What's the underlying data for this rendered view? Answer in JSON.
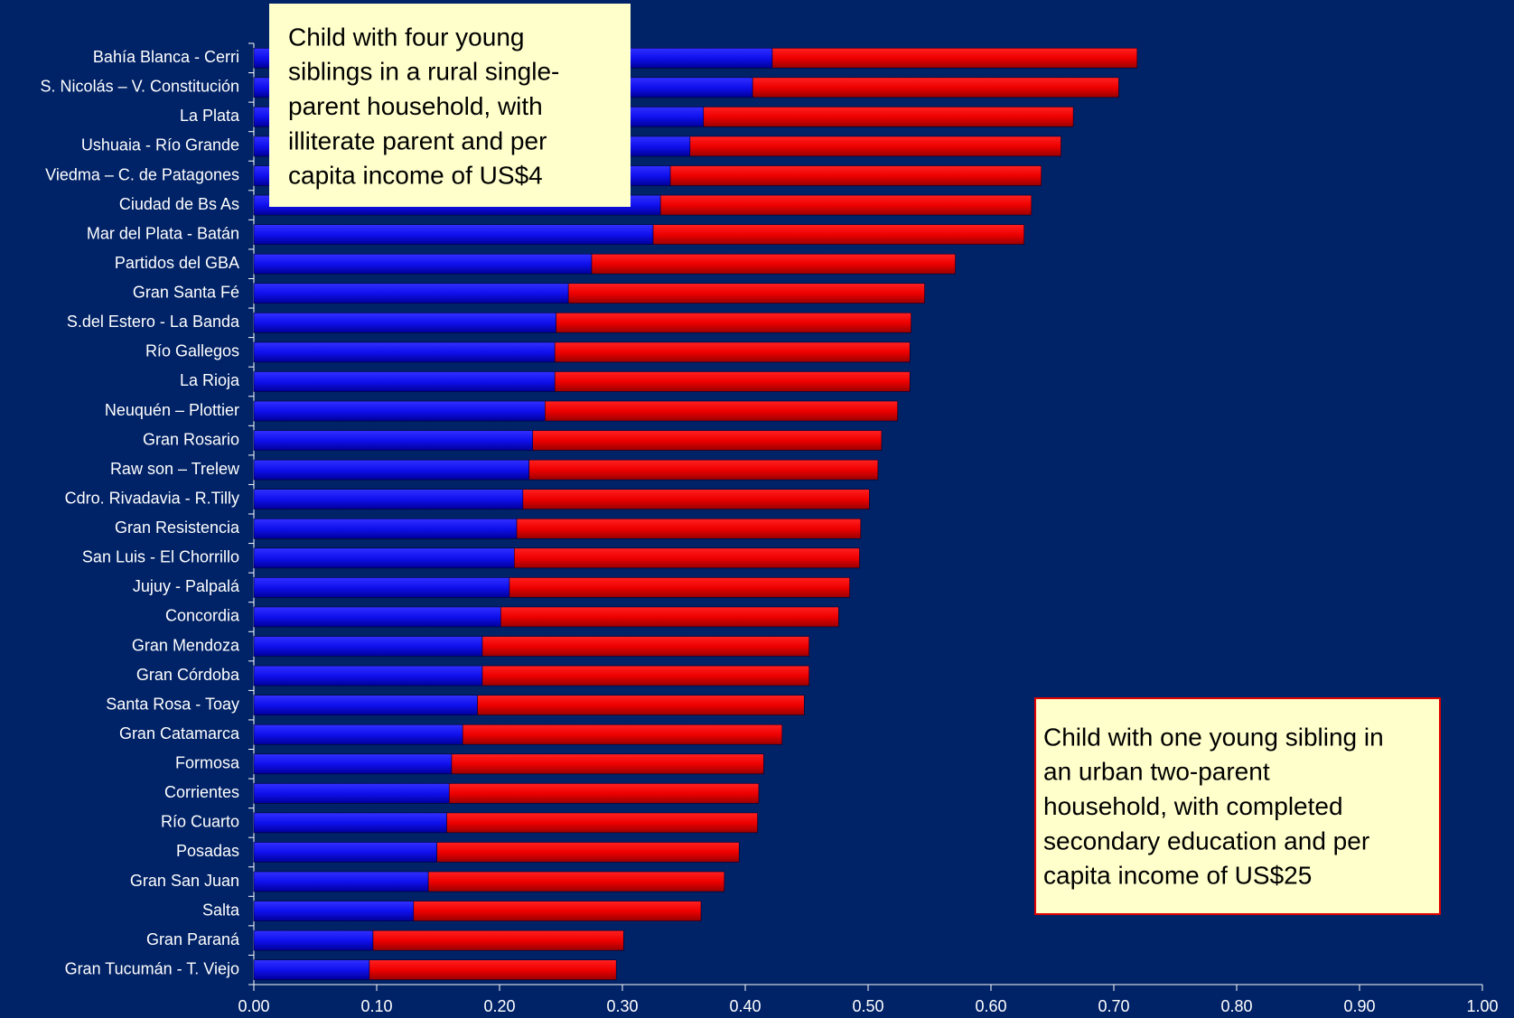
{
  "chart_data": {
    "type": "stacked_barh",
    "categories": [
      "Bahía Blanca - Cerri",
      "S. Nicolás – V. Constitución",
      "La Plata",
      "Ushuaia - Río Grande",
      "Viedma – C. de Patagones",
      "Ciudad de Bs As",
      "Mar del Plata - Batán",
      "Partidos del GBA",
      "Gran Santa Fé",
      "S.del Estero - La Banda",
      "Río Gallegos",
      "La Rioja",
      "Neuquén – Plottier",
      "Gran Rosario",
      "Raw son – Trelew",
      "Cdro. Rivadavia - R.Tilly",
      "Gran Resistencia",
      "San Luis - El Chorrillo",
      "Jujuy - Palpalá",
      "Concordia",
      "Gran Mendoza",
      "Gran Córdoba",
      "Santa Rosa - Toay",
      "Gran Catamarca",
      "Formosa",
      "Corrientes",
      "Río Cuarto",
      "Posadas",
      "Gran San Juan",
      "Salta",
      "Gran Paraná",
      "Gran Tucumán - T. Viejo"
    ],
    "series": [
      {
        "color": "#1a1aff",
        "values": [
          0.422,
          0.406,
          0.366,
          0.355,
          0.339,
          0.331,
          0.325,
          0.275,
          0.256,
          0.246,
          0.245,
          0.245,
          0.237,
          0.227,
          0.224,
          0.219,
          0.214,
          0.212,
          0.208,
          0.201,
          0.186,
          0.186,
          0.182,
          0.17,
          0.161,
          0.159,
          0.157,
          0.149,
          0.142,
          0.13,
          0.097,
          0.094
        ]
      },
      {
        "color": "#ee0000",
        "values": [
          0.297,
          0.298,
          0.301,
          0.302,
          0.302,
          0.302,
          0.302,
          0.296,
          0.29,
          0.289,
          0.289,
          0.289,
          0.287,
          0.284,
          0.284,
          0.282,
          0.28,
          0.281,
          0.277,
          0.275,
          0.266,
          0.266,
          0.266,
          0.26,
          0.254,
          0.252,
          0.253,
          0.246,
          0.241,
          0.234,
          0.204,
          0.201
        ]
      }
    ],
    "xlim": [
      0,
      1
    ],
    "xticks": [
      {
        "value": 0,
        "label": "0.00"
      },
      {
        "value": 0.1,
        "label": "0.10"
      },
      {
        "value": 0.2,
        "label": "0.20"
      },
      {
        "value": 0.3,
        "label": "0.30"
      },
      {
        "value": 0.4,
        "label": "0.40"
      },
      {
        "value": 0.5,
        "label": "0.50"
      },
      {
        "value": 0.6,
        "label": "0.60"
      },
      {
        "value": 0.7,
        "label": "0.70"
      },
      {
        "value": 0.8,
        "label": "0.80"
      },
      {
        "value": 0.9,
        "label": "0.90"
      },
      {
        "value": 1,
        "label": "1.00"
      }
    ],
    "annotations": [
      {
        "lines": [
          "Child with four young",
          "siblings in a rural single-",
          "parent household, with",
          "illiterate parent and per",
          "capita income of US$4"
        ],
        "border": "#ffffcc"
      },
      {
        "lines": [
          "Child with one young sibling in",
          "an urban two-parent",
          "household, with completed",
          "secondary education and per",
          "capita income of US$25"
        ],
        "border": "#e00000"
      }
    ]
  }
}
